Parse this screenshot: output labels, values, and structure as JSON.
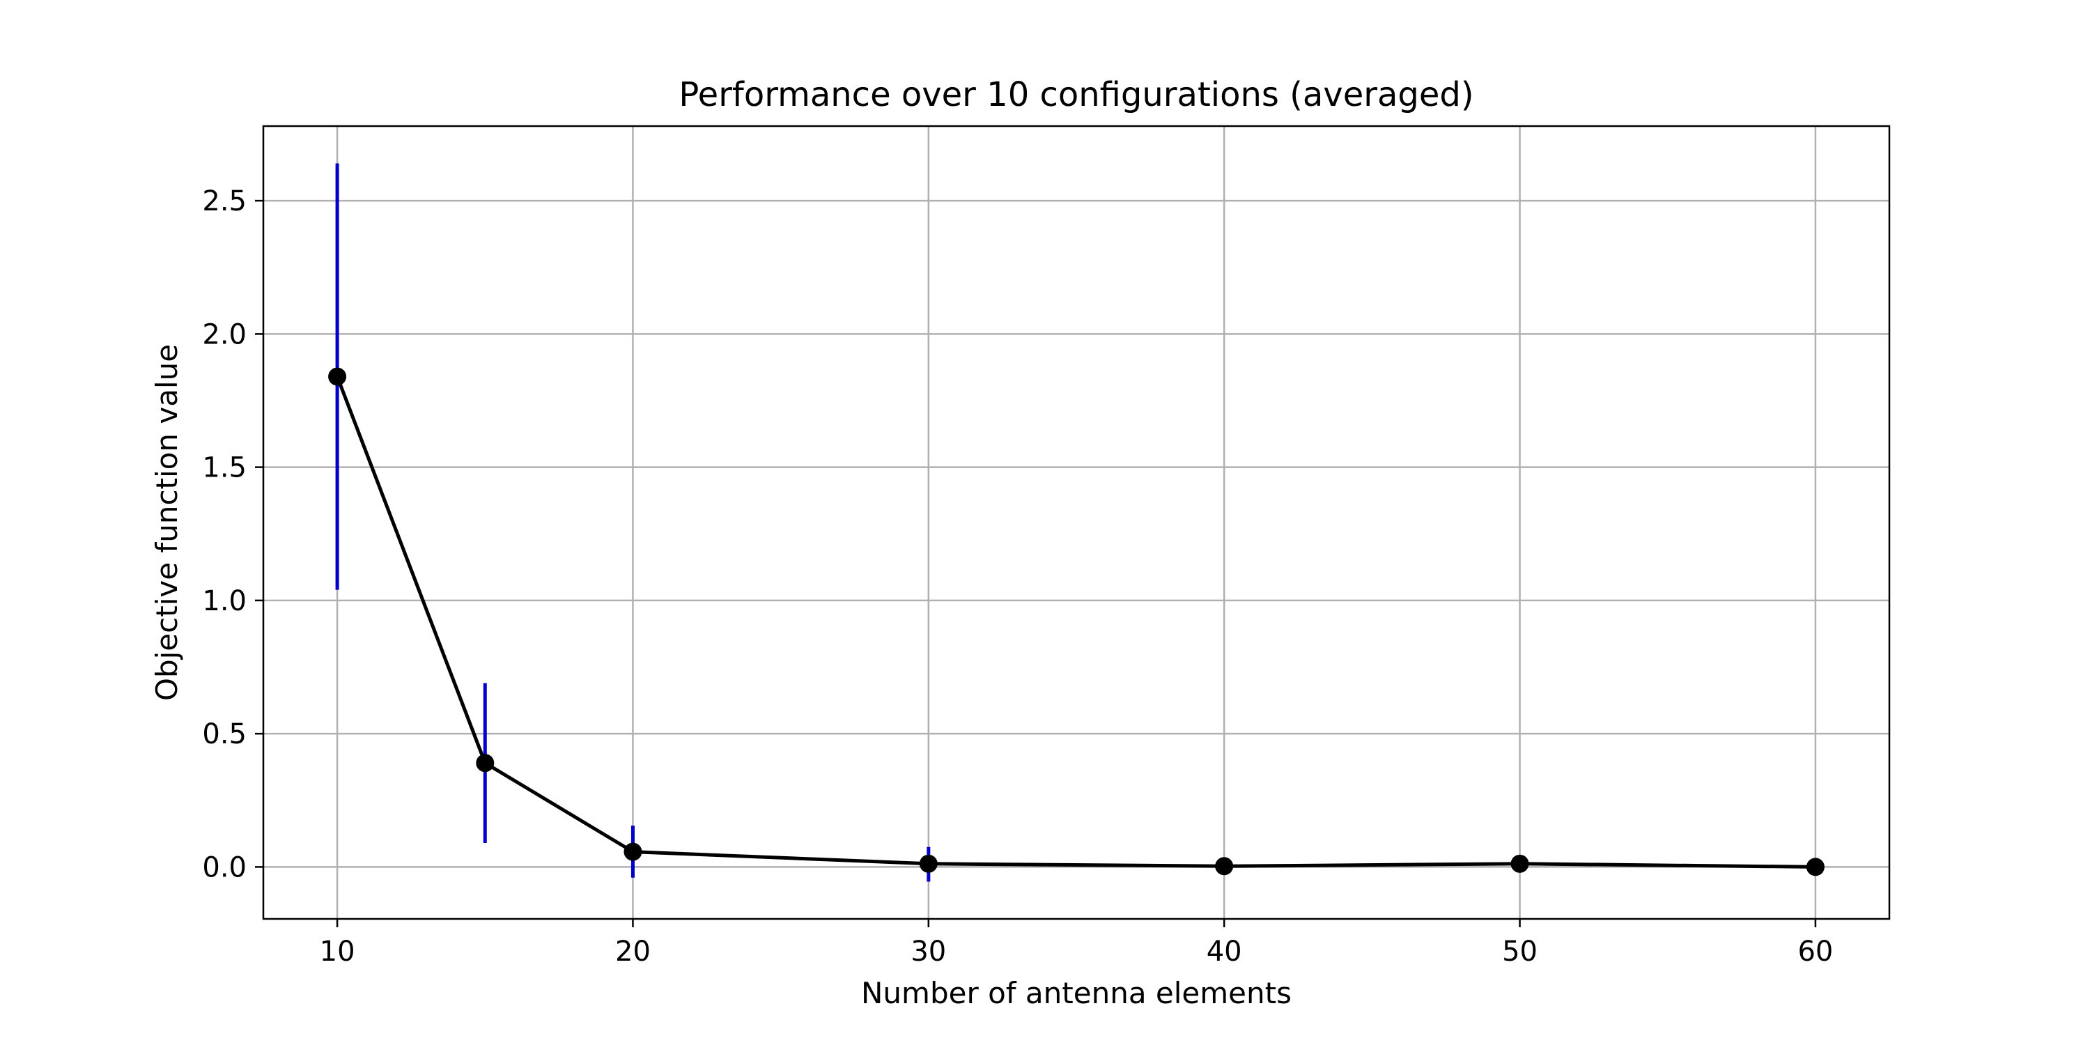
{
  "chart_data": {
    "type": "line",
    "title": "Performance over 10 configurations (averaged)",
    "xlabel": "Number of antenna elements",
    "ylabel": "Objective function value",
    "xlim": [
      7.5,
      62.5
    ],
    "ylim": [
      -0.195,
      2.78
    ],
    "xticks": [
      10,
      20,
      30,
      40,
      50,
      60
    ],
    "yticks": [
      0.0,
      0.5,
      1.0,
      1.5,
      2.0,
      2.5
    ],
    "grid": true,
    "series": [
      {
        "x": [
          10,
          15,
          20,
          30,
          40,
          50,
          60
        ],
        "y": [
          1.84,
          0.39,
          0.057,
          0.012,
          0.003,
          0.012,
          0.0
        ],
        "yerr_low": [
          1.04,
          0.09,
          -0.04,
          -0.055,
          0.003,
          0.012,
          0.0
        ],
        "yerr_high": [
          2.64,
          0.69,
          0.155,
          0.075,
          0.003,
          0.012,
          0.0
        ]
      }
    ],
    "colors": {
      "line": "#000000",
      "marker": "#000000",
      "errorbar": "#0000cc",
      "grid": "#b0b0b0",
      "frame": "#000000"
    }
  }
}
